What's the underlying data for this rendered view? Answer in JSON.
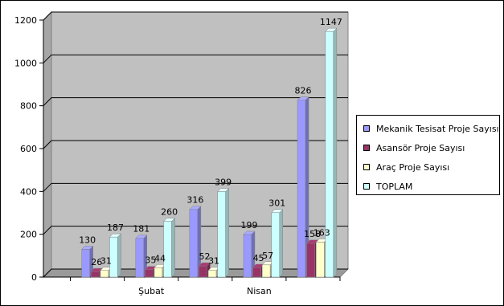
{
  "chart_data": {
    "type": "bar",
    "categories": [
      "",
      "Şubat",
      "",
      "Nisan",
      ""
    ],
    "series": [
      {
        "name": "Mekanik Tesisat Proje Sayısı",
        "values": [
          130,
          181,
          316,
          199,
          826
        ],
        "color": "#9999ff"
      },
      {
        "name": "Asansör Proje Sayısı",
        "values": [
          26,
          35,
          52,
          45,
          158
        ],
        "color": "#993366"
      },
      {
        "name": "Araç Proje Sayısı",
        "values": [
          31,
          44,
          31,
          57,
          163
        ],
        "color": "#ffffcc"
      },
      {
        "name": "TOPLAM",
        "values": [
          187,
          260,
          399,
          301,
          1147
        ],
        "color": "#ccffff"
      }
    ],
    "ylim": [
      0,
      1200
    ],
    "yticks": [
      0,
      200,
      400,
      600,
      800,
      1000,
      1200
    ],
    "legend_position": "right",
    "grid": true,
    "three_d": true
  }
}
